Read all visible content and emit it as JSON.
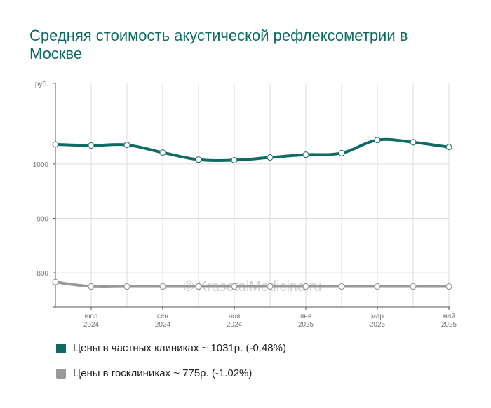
{
  "chart_data": {
    "type": "line",
    "title": "Средняя стоимость акустической рефлексометрии в Москве",
    "y_unit_label": "руб.",
    "ylim": [
      737,
      1148
    ],
    "y_ticks": [
      "1000",
      "900",
      "800"
    ],
    "x_ticks": [
      {
        "month": "июл",
        "year": "2024",
        "index": 1
      },
      {
        "month": "сен",
        "year": "2024",
        "index": 3
      },
      {
        "month": "ноя",
        "year": "2024",
        "index": 5
      },
      {
        "month": "янв",
        "year": "2025",
        "index": 7
      },
      {
        "month": "мар",
        "year": "2025",
        "index": 9
      },
      {
        "month": "май",
        "year": "2025",
        "index": 11
      }
    ],
    "categories": [
      "2024-06",
      "2024-07",
      "2024-08",
      "2024-09",
      "2024-10",
      "2024-11",
      "2024-12",
      "2025-01",
      "2025-02",
      "2025-03",
      "2025-04",
      "2025-05"
    ],
    "grid": true,
    "legend_position": "bottom",
    "series": [
      {
        "name": "Цены в частных клиниках ~ 1031р. (-0.48%)",
        "color": "#0d6b63",
        "values": [
          1036,
          1034,
          1035,
          1021,
          1008,
          1007,
          1012,
          1017,
          1020,
          1044,
          1040,
          1031
        ]
      },
      {
        "name": "Цены в госклиниках ~ 775р. (-1.02%)",
        "color": "#999999",
        "values": [
          783,
          775,
          775,
          775,
          775,
          775,
          775,
          775,
          775,
          775,
          775,
          775
        ]
      }
    ],
    "watermark": "© KrasotaiMedicina.ru"
  }
}
